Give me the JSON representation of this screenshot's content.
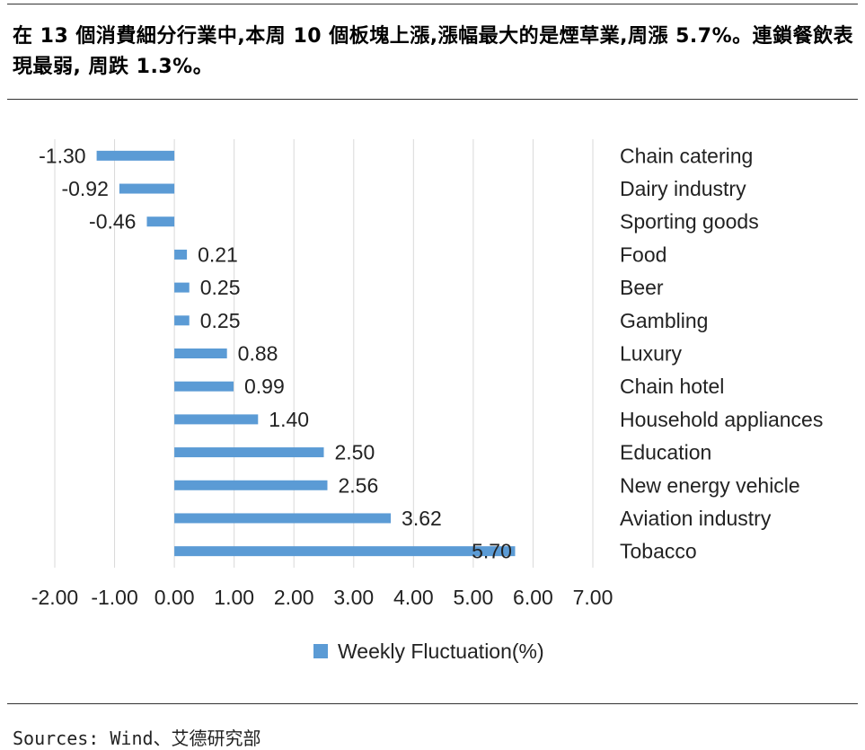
{
  "headline": "在 13 個消費細分行業中,本周 10 個板塊上漲,漲幅最大的是煙草業,周漲 5.7%。連鎖餐飲表現最弱, 周跌 1.3%。",
  "sources": "Sources: Wind、艾德研究部",
  "chart_data": {
    "type": "bar",
    "orientation": "horizontal",
    "categories": [
      "Chain catering",
      "Dairy industry",
      "Sporting goods",
      "Food",
      "Beer",
      "Gambling",
      "Luxury",
      "Chain hotel",
      "Household appliances",
      "Education",
      "New energy vehicle",
      "Aviation industry",
      "Tobacco"
    ],
    "series": [
      {
        "name": "Weekly Fluctuation(%)",
        "values": [
          -1.3,
          -0.92,
          -0.46,
          0.21,
          0.25,
          0.25,
          0.88,
          0.99,
          1.4,
          2.5,
          2.56,
          3.62,
          5.7
        ],
        "color": "#5b9bd5"
      }
    ],
    "value_labels": [
      "-1.30",
      "-0.92",
      "-0.46",
      "0.21",
      "0.25",
      "0.25",
      "0.88",
      "0.99",
      "1.40",
      "2.50",
      "2.56",
      "3.62",
      "5.70"
    ],
    "xlim": [
      -2.0,
      7.0
    ],
    "xticks": [
      "-2.00",
      "-1.00",
      "0.00",
      "1.00",
      "2.00",
      "3.00",
      "4.00",
      "5.00",
      "6.00",
      "7.00"
    ],
    "grid": true,
    "legend": "bottom",
    "category_labels_position": "right"
  }
}
